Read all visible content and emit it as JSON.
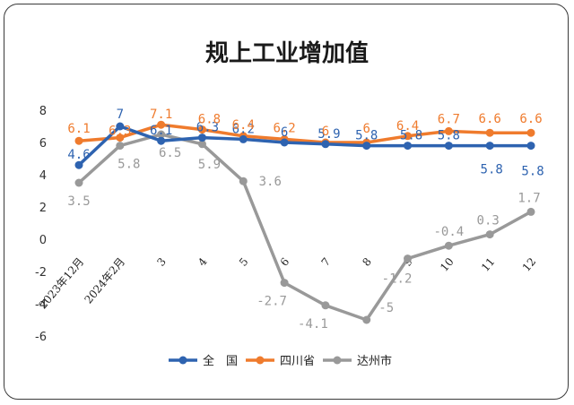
{
  "chart_data": {
    "type": "line",
    "title": "规上工业增加值",
    "categories": [
      "2023年12月",
      "2024年2月",
      "3",
      "4",
      "5",
      "6",
      "7",
      "8",
      "9",
      "10",
      "11",
      "12"
    ],
    "ylim": [
      -6,
      8
    ],
    "yticks": [
      8,
      6,
      4,
      2,
      0,
      -2,
      -4,
      -6
    ],
    "grid": false,
    "legend_position": "bottom",
    "series": [
      {
        "name": "全　国",
        "color": "#2e63b0",
        "values": [
          4.6,
          7,
          6.1,
          6.3,
          6.2,
          6,
          5.9,
          5.8,
          5.8,
          5.8,
          5.8,
          5.8
        ]
      },
      {
        "name": "四川省",
        "color": "#ef7b2d",
        "values": [
          6.1,
          6.3,
          7.1,
          6.8,
          6.4,
          6.2,
          6,
          6,
          6.4,
          6.7,
          6.6,
          6.6
        ]
      },
      {
        "name": "达州市",
        "color": "#999999",
        "values": [
          3.5,
          5.8,
          6.5,
          5.9,
          3.6,
          -2.7,
          -4.1,
          -5,
          -1.2,
          -0.4,
          0.3,
          1.7
        ]
      }
    ],
    "point_labels": [
      [
        "4.6",
        "7",
        "6.1",
        "6.3",
        "6.2",
        "6",
        "5.9",
        "5.8",
        "5.8",
        "5.8",
        "5.8",
        "5.8"
      ],
      [
        "6.1",
        "6.3",
        "7.1",
        "6.8",
        "6.4",
        "6.2",
        "6",
        "6",
        "6.4",
        "6.7",
        "6.6",
        "6.6"
      ],
      [
        "3.5",
        "5.8",
        "6.5",
        "5.9",
        "3.6",
        "-2.7",
        "-4.1",
        "-5",
        "-1.2",
        "-0.4",
        "0.3",
        "1.7"
      ]
    ]
  }
}
